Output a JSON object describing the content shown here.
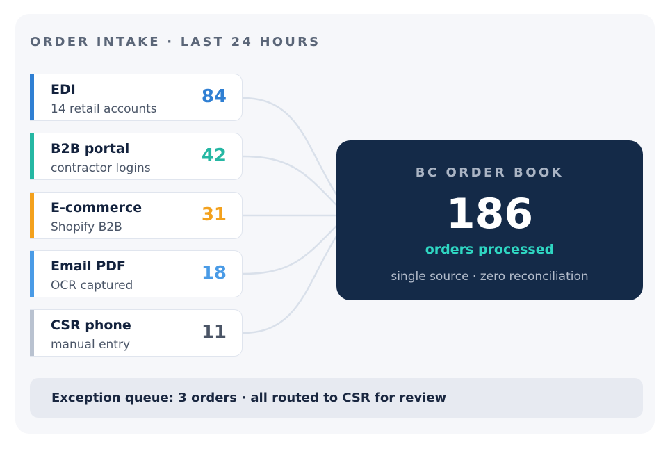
{
  "title": "ORDER INTAKE · LAST 24 HOURS",
  "sources": [
    {
      "name": "EDI",
      "sub": "14 retail accounts",
      "count": "84",
      "color": "#2f7fd3"
    },
    {
      "name": "B2B portal",
      "sub": "contractor logins",
      "count": "42",
      "color": "#25b7a3"
    },
    {
      "name": "E-commerce",
      "sub": "Shopify B2B",
      "count": "31",
      "color": "#f3a11d"
    },
    {
      "name": "Email PDF",
      "sub": "OCR captured",
      "count": "18",
      "color": "#4a9be6"
    },
    {
      "name": "CSR phone",
      "sub": "manual entry",
      "count": "11",
      "color": "#b9c2d0"
    }
  ],
  "count_colors": [
    "#2f7fd3",
    "#25b7a3",
    "#f3a11d",
    "#4a9be6",
    "#4b5566"
  ],
  "order_book": {
    "label": "BC ORDER BOOK",
    "total": "186",
    "subtitle": "orders processed",
    "note": "single source · zero reconciliation"
  },
  "exception": "Exception queue: 3 orders · all routed to CSR for review"
}
